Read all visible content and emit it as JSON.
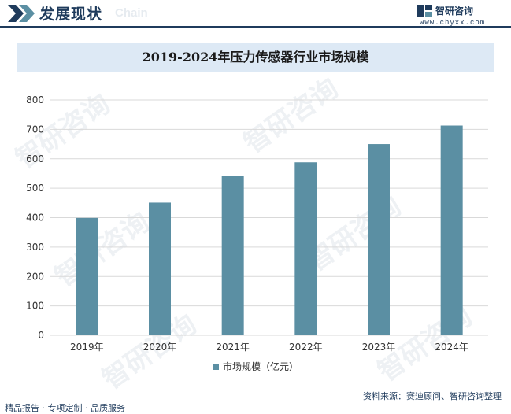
{
  "header": {
    "title": "发展现状",
    "subtitle_en": "Chain",
    "brand_name": "智研咨询",
    "brand_url": "www.chyxx.com"
  },
  "watermark": {
    "text": "智研咨询"
  },
  "footer": {
    "left": "精品报告 · 专项定制 · 品质服务",
    "source": "资料来源：赛迪顾问、智研咨询整理"
  },
  "colors": {
    "bar": "#5b8fa3",
    "grid": "#d9d9d9",
    "navy": "#1f3b5c",
    "title_bg": "#dde9f5"
  },
  "chart_data": {
    "type": "bar",
    "title": "2019-2024年压力传感器行业市场规模",
    "categories": [
      "2019年",
      "2020年",
      "2021年",
      "2022年",
      "2023年",
      "2024年"
    ],
    "series": [
      {
        "name": "市场规模（亿元）",
        "values": [
          399,
          451,
          543,
          588,
          650,
          713
        ]
      }
    ],
    "ylim": [
      0,
      800
    ],
    "yticks": [
      0,
      100,
      200,
      300,
      400,
      500,
      600,
      700,
      800
    ],
    "xlabel": "",
    "ylabel": "",
    "legend": "bottom",
    "grid": true
  }
}
